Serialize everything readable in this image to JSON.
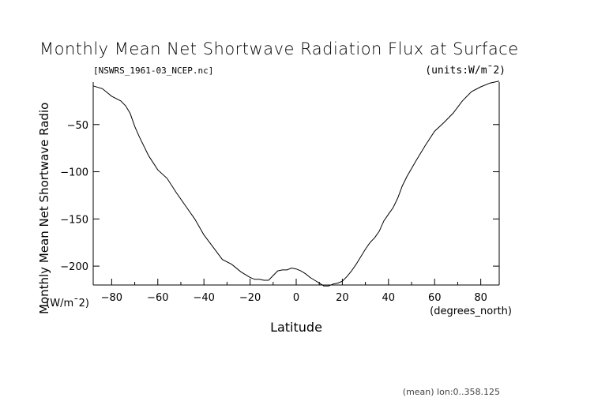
{
  "chart_data": {
    "type": "line",
    "title": "Monthly Mean Net Shortwave Radiation Flux at Surface",
    "file_label": "[NSWRS_1961-03_NCEP.nc]",
    "units_label": "(units:W/m¯2)",
    "xlabel": "Latitude",
    "x_units": "(degrees_north)",
    "ylabel": "Monthly Mean Net Shortwave Radio",
    "y_units": "(W/m¯2)",
    "footer": "(mean) lon:0..358.125",
    "xlim": [
      -88,
      88
    ],
    "ylim": [
      -220,
      -5
    ],
    "x_ticks": [
      -80,
      -60,
      -40,
      -20,
      0,
      20,
      40,
      60,
      80
    ],
    "x_tick_labels": [
      "−80",
      "−60",
      "−40",
      "−20",
      "0",
      "20",
      "40",
      "60",
      "80"
    ],
    "y_ticks": [
      -50,
      -100,
      -150,
      -200
    ],
    "y_tick_labels": [
      "−50",
      "−100",
      "−150",
      "−200"
    ],
    "grid": false,
    "series": [
      {
        "x": [
          -88,
          -84,
          -80,
          -76,
          -74,
          -72,
          -70,
          -68,
          -64,
          -60,
          -56,
          -52,
          -48,
          -44,
          -40,
          -36,
          -32,
          -28,
          -24,
          -20,
          -18,
          -16,
          -14,
          -12,
          -10,
          -8,
          -6,
          -4,
          -2,
          0,
          2,
          4,
          6,
          8,
          10,
          12,
          14,
          16,
          18,
          20,
          22,
          24,
          26,
          28,
          30,
          32,
          34,
          36,
          38,
          40,
          42,
          44,
          46,
          48,
          52,
          56,
          60,
          64,
          68,
          72,
          76,
          80,
          84,
          88
        ],
        "y": [
          -9,
          -12,
          -20,
          -25,
          -30,
          -38,
          -52,
          -63,
          -83,
          -98,
          -107,
          -122,
          -136,
          -150,
          -167,
          -180,
          -193,
          -198,
          -206,
          -212,
          -214,
          -214,
          -215,
          -215,
          -210,
          -205,
          -204,
          -204,
          -202,
          -203,
          -205,
          -208,
          -212,
          -215,
          -218,
          -221,
          -221,
          -219,
          -218,
          -216,
          -211,
          -205,
          -198,
          -190,
          -182,
          -175,
          -170,
          -163,
          -152,
          -145,
          -138,
          -128,
          -115,
          -105,
          -88,
          -72,
          -57,
          -48,
          -38,
          -25,
          -15,
          -10,
          -6,
          -4
        ]
      }
    ]
  }
}
